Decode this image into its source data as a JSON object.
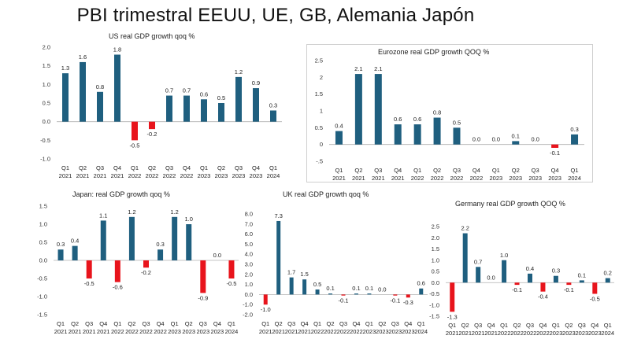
{
  "page": {
    "title": "PBI trimestral EEUU, UE, GB, Alemania Japón"
  },
  "colors": {
    "positive": "#1f5f7f",
    "negative": "#e8141c",
    "axis": "#b0b0b0",
    "text": "#222222"
  },
  "chart_data": [
    {
      "id": "us",
      "type": "bar",
      "title": "US real GDP growth qoq %",
      "categories": [
        "Q1 2021",
        "Q2 2021",
        "Q3 2021",
        "Q4 2021",
        "Q1 2022",
        "Q2 2022",
        "Q3 2022",
        "Q4 2022",
        "Q1 2023",
        "Q2 2023",
        "Q3 2023",
        "Q4 2023",
        "Q1 2024"
      ],
      "values": [
        1.3,
        1.6,
        0.8,
        1.8,
        -0.5,
        -0.2,
        0.7,
        0.7,
        0.6,
        0.5,
        1.2,
        0.9,
        0.3
      ],
      "labels": [
        "1.3",
        "1.6",
        "0.8",
        "1.8",
        "-0.5",
        "-0.2",
        "0.7",
        "0.7",
        "0.6",
        "0.5",
        "1.2",
        "0.9",
        "0.3"
      ],
      "yticks": [
        "2.0",
        "1.5",
        "1.0",
        "0.5",
        "0.0",
        "-0.5",
        "-1.0"
      ],
      "ytick_values": [
        2.0,
        1.5,
        1.0,
        0.5,
        0.0,
        -0.5,
        -1.0
      ],
      "ylim": [
        -1.0,
        2.0
      ],
      "grid": false
    },
    {
      "id": "eu",
      "type": "bar",
      "title": "Eurozone real GDP growth QOQ %",
      "categories": [
        "Q1 2021",
        "Q2 2021",
        "Q3 2021",
        "Q4 2021",
        "Q1 2022",
        "Q2 2022",
        "Q3 2022",
        "Q4 2022",
        "Q1 2023",
        "Q2 2023",
        "Q3 2023",
        "Q4 2023",
        "Q1 2024"
      ],
      "values": [
        0.4,
        2.1,
        2.1,
        0.6,
        0.6,
        0.8,
        0.5,
        0.0,
        0.0,
        0.1,
        0.0,
        -0.1,
        0.3
      ],
      "labels": [
        "0.4",
        "2.1",
        "2.1",
        "0.6",
        "0.6",
        "0.8",
        "0.5",
        "0.0",
        "0.0",
        "0.1",
        "0.0",
        "-0.1",
        "0.3"
      ],
      "yticks": [
        "2.5",
        "2",
        "1.5",
        "1",
        "0.5",
        "0",
        "-.5"
      ],
      "ytick_values": [
        2.5,
        2.0,
        1.5,
        1.0,
        0.5,
        0.0,
        -0.5
      ],
      "ylim": [
        -0.5,
        2.5
      ],
      "grid": false
    },
    {
      "id": "jp",
      "type": "bar",
      "title": "Japan: real GDP growth qoq %",
      "categories": [
        "Q1 2021",
        "Q2 2021",
        "Q3 2021",
        "Q4 2021",
        "Q1 2022",
        "Q2 2022",
        "Q3 2022",
        "Q4 2022",
        "Q1 2023",
        "Q2 2023",
        "Q3 2023",
        "Q4 2023",
        "Q1 2024"
      ],
      "values": [
        0.3,
        0.4,
        -0.5,
        1.1,
        -0.6,
        1.2,
        -0.2,
        0.3,
        1.2,
        1.0,
        -0.9,
        0.0,
        -0.5
      ],
      "labels": [
        "0.3",
        "0.4",
        "-0.5",
        "1.1",
        "-0.6",
        "1.2",
        "-0.2",
        "0.3",
        "1.2",
        "1.0",
        "-0.9",
        "0.0",
        "-0.5"
      ],
      "yticks": [
        "1.5",
        "1.0",
        "0.5",
        "0.0",
        "-0.5",
        "-1.0",
        "-1.5"
      ],
      "ytick_values": [
        1.5,
        1.0,
        0.5,
        0.0,
        -0.5,
        -1.0,
        -1.5
      ],
      "ylim": [
        -1.5,
        1.5
      ],
      "grid": false
    },
    {
      "id": "uk",
      "type": "bar",
      "title": "UK real GDP growth qoq %",
      "categories": [
        "Q1 2021",
        "Q2 2021",
        "Q3 2021",
        "Q4 2021",
        "Q1 2022",
        "Q2 2022",
        "Q3 2022",
        "Q4 2022",
        "Q1 2023",
        "Q2 2023",
        "Q3 2023",
        "Q4 2023",
        "Q1 2024"
      ],
      "values": [
        -1.0,
        7.3,
        1.7,
        1.5,
        0.5,
        0.1,
        -0.1,
        0.1,
        0.1,
        0.0,
        -0.1,
        -0.3,
        0.6
      ],
      "labels": [
        "-1.0",
        "7.3",
        "1.7",
        "1.5",
        "0.5",
        "0.1",
        "-0.1",
        "0.1",
        "0.1",
        "0.0",
        "-0.1",
        "-0.3",
        "0.6"
      ],
      "yticks": [
        "8.0",
        "7.0",
        "6.0",
        "5.0",
        "4.0",
        "3.0",
        "2.0",
        "1.0",
        "0.0",
        "-1.0",
        "-2.0"
      ],
      "ytick_values": [
        8,
        7,
        6,
        5,
        4,
        3,
        2,
        1,
        0,
        -1,
        -2
      ],
      "ylim": [
        -2.0,
        8.0
      ],
      "grid": false
    },
    {
      "id": "de",
      "type": "bar",
      "title": "Germany real GDP growth QOQ %",
      "categories": [
        "Q1 2021",
        "Q2 2021",
        "Q3 2021",
        "Q4 2021",
        "Q1 2022",
        "Q2 2022",
        "Q3 2022",
        "Q4 2022",
        "Q1 2023",
        "Q2 2023",
        "Q3 2023",
        "Q4 2023",
        "Q1 2024"
      ],
      "values": [
        -1.3,
        2.2,
        0.7,
        0.0,
        1.0,
        -0.1,
        0.4,
        -0.4,
        0.3,
        -0.1,
        0.1,
        -0.5,
        0.2
      ],
      "labels": [
        "-1.3",
        "2.2",
        "0.7",
        "0.0",
        "1.0",
        "-0.1",
        "0.4",
        "-0.4",
        "0.3",
        "-0.1",
        "0.1",
        "-0.5",
        "0.2"
      ],
      "yticks": [
        "2.5",
        "2.0",
        "1.5",
        "1.0",
        "0.5",
        "0.0",
        "-0.5",
        "-1.0",
        "-1.5"
      ],
      "ytick_values": [
        2.5,
        2.0,
        1.5,
        1.0,
        0.5,
        0.0,
        -0.5,
        -1.0,
        -1.5
      ],
      "ylim": [
        -1.5,
        2.5
      ],
      "grid": false
    }
  ]
}
